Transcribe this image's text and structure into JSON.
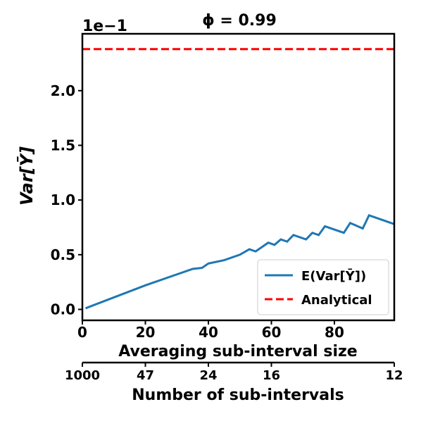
{
  "chart_data": {
    "type": "line",
    "title": "ϕ = 0.99",
    "offset_text": "1e−1",
    "xlabel": "Averaging sub-interval size",
    "x2label": "Number of sub-intervals",
    "ylabel": "Var[Ȳ]",
    "xlim": [
      0,
      99
    ],
    "xticks": [
      0,
      20,
      40,
      60,
      80
    ],
    "ylim": [
      -0.1,
      2.52
    ],
    "yticks": [
      {
        "value": 0,
        "label": "0.0"
      },
      {
        "value": 0.5,
        "label": "0.5"
      },
      {
        "value": 1,
        "label": "1.0"
      },
      {
        "value": 1.5,
        "label": "1.5"
      },
      {
        "value": 2,
        "label": "2.0"
      }
    ],
    "x2ticks": [
      {
        "value": 0,
        "label": "1000"
      },
      {
        "value": 20,
        "label": "47"
      },
      {
        "value": 40,
        "label": "24"
      },
      {
        "value": 60,
        "label": "16"
      },
      {
        "value": 99,
        "label": "12"
      }
    ],
    "legend": "lower right",
    "series": [
      {
        "name": "E(Var[Ȳ])",
        "color": "#1f77b4",
        "linestyle": "solid",
        "x": [
          1,
          20,
          30,
          35,
          38,
          40,
          45,
          50,
          53,
          55,
          59,
          61,
          63,
          65,
          67,
          71,
          73,
          75,
          77,
          83,
          85,
          89,
          91,
          99
        ],
        "values": [
          0.01,
          0.22,
          0.32,
          0.37,
          0.38,
          0.42,
          0.45,
          0.5,
          0.55,
          0.53,
          0.61,
          0.59,
          0.64,
          0.62,
          0.68,
          0.64,
          0.7,
          0.68,
          0.76,
          0.7,
          0.79,
          0.74,
          0.86,
          0.78
        ]
      },
      {
        "name": "Analytical",
        "color": "#ff0000",
        "linestyle": "dashed",
        "y": 2.38
      }
    ]
  }
}
